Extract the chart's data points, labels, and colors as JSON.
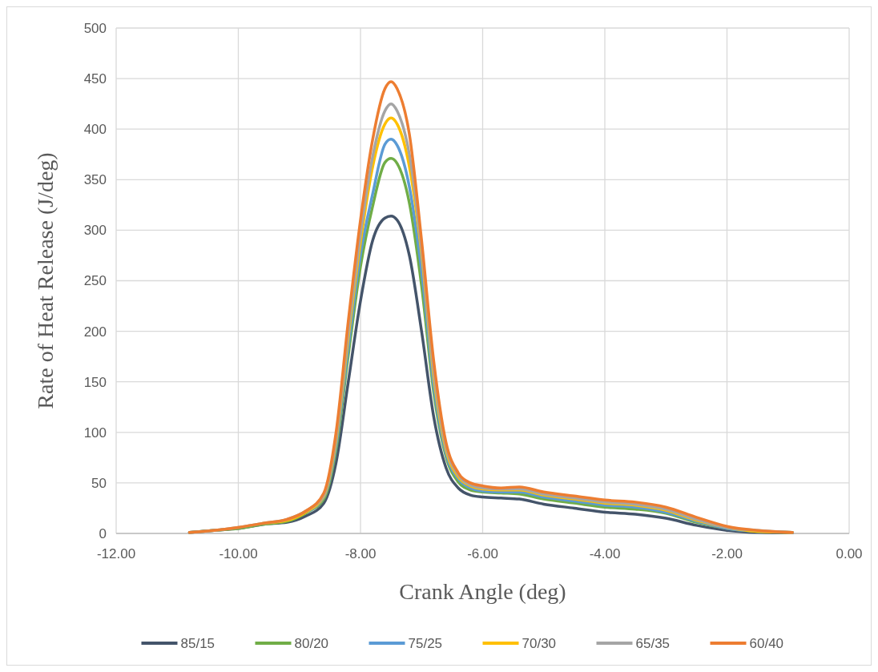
{
  "chart_data": {
    "type": "line",
    "xlabel": "Crank Angle (deg)",
    "ylabel": "Rate of Heat Release (J/deg)",
    "x": [
      -10.8,
      -10.4,
      -10.0,
      -9.6,
      -9.2,
      -8.9,
      -8.6,
      -8.4,
      -8.2,
      -8.0,
      -7.8,
      -7.6,
      -7.5,
      -7.4,
      -7.2,
      -7.0,
      -6.8,
      -6.6,
      -6.4,
      -6.2,
      -6.0,
      -5.7,
      -5.4,
      -5.0,
      -4.5,
      -4.0,
      -3.5,
      -3.0,
      -2.5,
      -2.0,
      -1.5,
      -0.93
    ],
    "series": [
      {
        "name": "85/15",
        "color": "#44546a",
        "values": [
          1,
          3,
          5,
          9,
          11,
          17,
          30,
          70,
          150,
          230,
          290,
          312,
          314,
          310,
          275,
          200,
          115,
          65,
          45,
          38,
          36,
          35,
          34,
          29,
          25,
          21,
          19,
          15,
          8,
          3,
          1,
          0.5
        ]
      },
      {
        "name": "80/20",
        "color": "#70ad47",
        "values": [
          1,
          3,
          5,
          9,
          12,
          20,
          34,
          83,
          176,
          264,
          324,
          367,
          371,
          366,
          327,
          245,
          139,
          76,
          51,
          43,
          41,
          40,
          39,
          34,
          30,
          26,
          24,
          20,
          11,
          5,
          2,
          1
        ]
      },
      {
        "name": "75/25",
        "color": "#5b9bd5",
        "values": [
          null,
          null,
          null,
          null,
          null,
          21,
          36,
          87,
          184,
          276,
          336,
          385,
          390,
          384,
          343,
          260,
          146,
          79,
          54,
          45,
          42,
          41,
          41,
          36,
          32,
          28,
          26,
          21,
          12,
          5,
          2,
          1
        ]
      },
      {
        "name": "70/30",
        "color": "#ffc000",
        "values": [
          null,
          null,
          null,
          10,
          13,
          21,
          37,
          92,
          194,
          288,
          363,
          405,
          411,
          405,
          363,
          277,
          155,
          83,
          56,
          47,
          44,
          43,
          43,
          38,
          34,
          30,
          28,
          23,
          13,
          6,
          2,
          1
        ]
      },
      {
        "name": "65/35",
        "color": "#a5a5a5",
        "values": [
          1,
          3,
          6,
          10,
          14,
          22,
          38,
          95,
          200,
          296,
          373,
          418,
          425,
          418,
          375,
          282,
          161,
          86,
          58,
          48,
          45,
          44,
          44,
          39,
          35,
          31,
          29,
          24,
          14,
          6,
          3,
          1
        ]
      },
      {
        "name": "60/40",
        "color": "#ed7d31",
        "values": [
          1,
          3,
          6,
          10,
          14,
          22,
          40,
          100,
          210,
          310,
          390,
          440,
          447,
          440,
          395,
          290,
          170,
          90,
          60,
          50,
          47,
          45,
          46,
          41,
          37,
          33,
          31,
          26,
          16,
          7,
          3,
          1
        ]
      }
    ],
    "xlim": [
      -12,
      0
    ],
    "xticks": [
      {
        "value": -12,
        "label": "-12.00"
      },
      {
        "value": -10,
        "label": "-10.00"
      },
      {
        "value": -8,
        "label": "-8.00"
      },
      {
        "value": -6,
        "label": "-6.00"
      },
      {
        "value": -4,
        "label": "-4.00"
      },
      {
        "value": -2,
        "label": "-2.00"
      },
      {
        "value": 0,
        "label": "0.00"
      }
    ],
    "ylim": [
      0,
      500
    ],
    "yticks": [
      0,
      50,
      100,
      150,
      200,
      250,
      300,
      350,
      400,
      450,
      500
    ],
    "grid": true,
    "legend": "bottom",
    "marker": "none",
    "line_style": "solid"
  }
}
